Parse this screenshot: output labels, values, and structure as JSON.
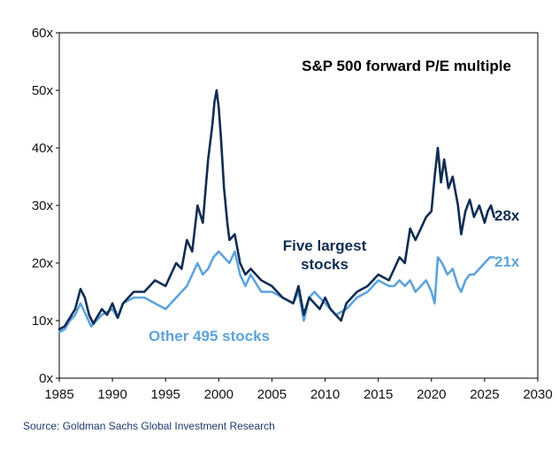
{
  "chart_data": {
    "type": "line",
    "title": "S&P 500 forward P/E multiple",
    "xlabel": "",
    "ylabel": "",
    "xlim": [
      1985,
      2030
    ],
    "ylim": [
      0,
      60
    ],
    "x_ticks": [
      "1985",
      "1990",
      "1995",
      "2000",
      "2005",
      "2010",
      "2015",
      "2020",
      "2025",
      "2030"
    ],
    "y_ticks": [
      "0x",
      "10x",
      "20x",
      "30x",
      "40x",
      "50x",
      "60x"
    ],
    "grid": false,
    "colors": {
      "five_largest": "#0f2d52",
      "other_495": "#5ea3db",
      "source": "#1f3a6e"
    },
    "series": [
      {
        "name": "Five largest stocks",
        "label_lines": [
          "Five largest",
          "stocks"
        ],
        "end_label": "28x",
        "x": [
          1985,
          1985.5,
          1986,
          1986.5,
          1987,
          1987.4,
          1987.8,
          1988.2,
          1989,
          1989.5,
          1990,
          1990.5,
          1991,
          1991.5,
          1992,
          1993,
          1994,
          1995,
          1995.5,
          1996,
          1996.5,
          1997,
          1997.5,
          1998,
          1998.5,
          1999,
          1999.4,
          1999.6,
          1999.8,
          2000,
          2000.2,
          2000.5,
          2000.8,
          2001,
          2001.5,
          2002,
          2002.5,
          2003,
          2004,
          2005,
          2006,
          2007,
          2007.5,
          2008,
          2008.5,
          2009,
          2009.5,
          2010,
          2010.5,
          2011,
          2011.5,
          2012,
          2013,
          2014,
          2015,
          2016,
          2016.5,
          2017,
          2017.5,
          2018,
          2018.5,
          2019,
          2019.5,
          2020,
          2020.3,
          2020.6,
          2020.9,
          2021.2,
          2021.6,
          2022,
          2022.5,
          2022.8,
          2023.2,
          2023.6,
          2024,
          2024.5,
          2025,
          2025.3,
          2025.6,
          2025.9
        ],
        "values": [
          8.5,
          9,
          10.5,
          12,
          15.5,
          14,
          11,
          9.5,
          12,
          11,
          13,
          10.5,
          13,
          14,
          15,
          15,
          17,
          16,
          18,
          20,
          19,
          24,
          22,
          30,
          27,
          38,
          44,
          48,
          50,
          47,
          42,
          33,
          27,
          24,
          25,
          20,
          18,
          19,
          17,
          16,
          14,
          13,
          16,
          11,
          14,
          13,
          12,
          14,
          12,
          11,
          10,
          13,
          15,
          16,
          18,
          17,
          19,
          21,
          20,
          26,
          24,
          26,
          28,
          29,
          35,
          40,
          34,
          38,
          33,
          35,
          30,
          25,
          29,
          31,
          28,
          30,
          27,
          29,
          30,
          28
        ]
      },
      {
        "name": "Other 495 stocks",
        "label_lines": [
          "Other 495 stocks"
        ],
        "end_label": "21x",
        "x": [
          1985,
          1985.5,
          1986,
          1986.5,
          1987,
          1987.5,
          1988,
          1988.5,
          1989,
          1990,
          1990.5,
          1991,
          1992,
          1993,
          1994,
          1995,
          1996,
          1997,
          1997.5,
          1998,
          1998.5,
          1999,
          1999.5,
          2000,
          2000.5,
          2001,
          2001.5,
          2002,
          2002.5,
          2003,
          2004,
          2005,
          2006,
          2007,
          2007.5,
          2008,
          2008.5,
          2009,
          2009.5,
          2010,
          2010.5,
          2011,
          2012,
          2013,
          2014,
          2015,
          2016,
          2016.5,
          2017,
          2017.5,
          2018,
          2018.5,
          2019,
          2019.5,
          2020,
          2020.3,
          2020.6,
          2021,
          2021.5,
          2022,
          2022.5,
          2022.8,
          2023.2,
          2023.6,
          2024,
          2024.5,
          2025,
          2025.5,
          2025.9
        ],
        "values": [
          8,
          8.5,
          10,
          11,
          13,
          11,
          9,
          10,
          11,
          12,
          10.5,
          13,
          14,
          14,
          13,
          12,
          14,
          16,
          18,
          20,
          18,
          19,
          21,
          22,
          21,
          20,
          22,
          18,
          16,
          18,
          15,
          15,
          14,
          13,
          15,
          10,
          14,
          15,
          14,
          13,
          12,
          11,
          12,
          14,
          15,
          17,
          16,
          16,
          17,
          16,
          17,
          15,
          16,
          17,
          15,
          13,
          21,
          20,
          18,
          19,
          16,
          15,
          17,
          18,
          18,
          19,
          20,
          21,
          21
        ]
      }
    ],
    "source": "Source: Goldman Sachs Global Investment Research"
  }
}
